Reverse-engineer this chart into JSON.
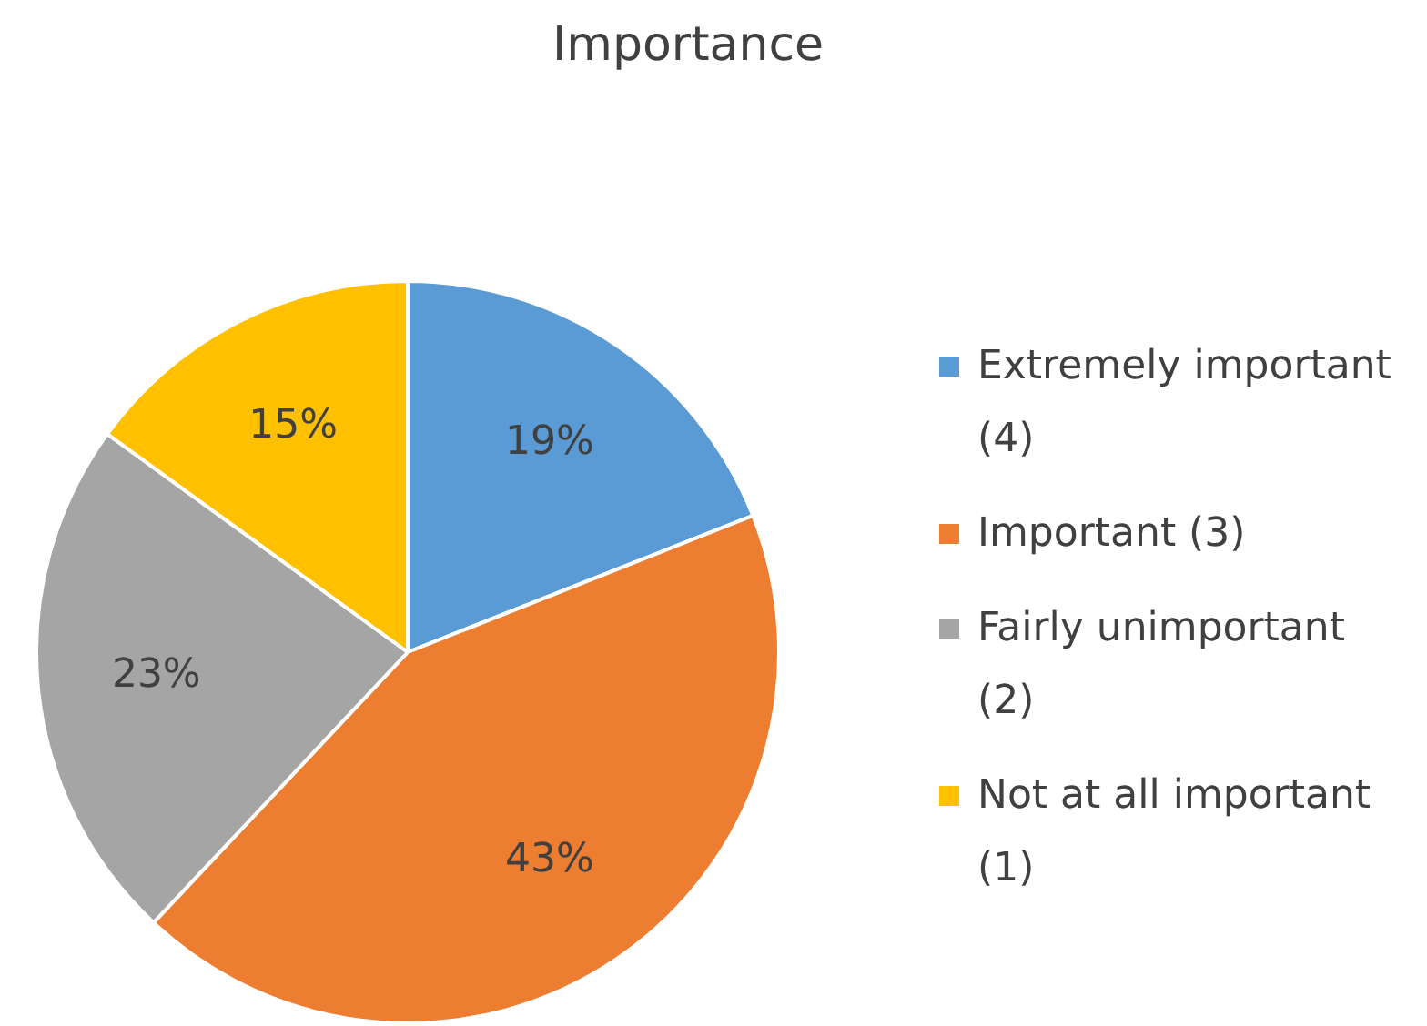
{
  "chart_data": {
    "type": "pie",
    "title": "Importance",
    "categories": [
      "Extremely important (4)",
      "Important (3)",
      "Fairly unimportant (2)",
      "Not at all important (1)"
    ],
    "values": [
      19,
      43,
      23,
      15
    ],
    "colors": [
      "#5b9bd5",
      "#ed7d31",
      "#a5a5a5",
      "#ffc000"
    ],
    "value_labels": [
      "19%",
      "43%",
      "23%",
      "15%"
    ],
    "legend": "right"
  }
}
